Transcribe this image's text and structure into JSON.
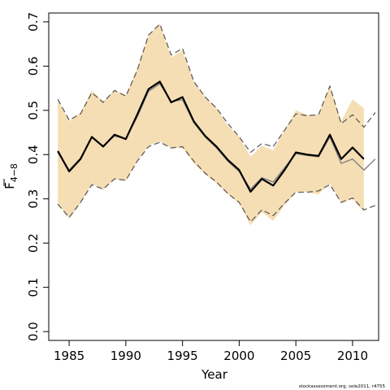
{
  "chart_data": {
    "type": "line",
    "title": "",
    "xlabel": "Year",
    "ylabel_main": "F",
    "ylabel_sub": "4−8",
    "xlim": [
      1983.2,
      2012.3
    ],
    "ylim": [
      -0.02,
      0.72
    ],
    "xticks": [
      1985,
      1990,
      1995,
      2000,
      2005,
      2010
    ],
    "yticks": [
      "0.0",
      "0.1",
      "0.2",
      "0.3",
      "0.4",
      "0.5",
      "0.6",
      "0.7"
    ],
    "colors": {
      "band": "#f5deb3",
      "bold": "#000000",
      "thin": "#808080",
      "dash": "#555555"
    },
    "band": {
      "x": [
        1984,
        1985,
        1986,
        1987,
        1988,
        1989,
        1990,
        1991,
        1992,
        1993,
        1994,
        1995,
        1996,
        1997,
        1998,
        1999,
        2000,
        2001,
        2002,
        2003,
        2004,
        2005,
        2006,
        2007,
        2008,
        2009,
        2010,
        2011
      ],
      "upper": [
        0.525,
        0.475,
        0.495,
        0.545,
        0.52,
        0.545,
        0.535,
        0.595,
        0.67,
        0.695,
        0.62,
        0.635,
        0.565,
        0.53,
        0.505,
        0.465,
        0.44,
        0.395,
        0.42,
        0.41,
        0.455,
        0.5,
        0.49,
        0.49,
        0.555,
        0.475,
        0.525,
        0.505
      ],
      "lower": [
        0.29,
        0.255,
        0.29,
        0.335,
        0.32,
        0.345,
        0.34,
        0.385,
        0.42,
        0.43,
        0.415,
        0.415,
        0.38,
        0.355,
        0.335,
        0.31,
        0.29,
        0.24,
        0.27,
        0.25,
        0.285,
        0.315,
        0.315,
        0.31,
        0.335,
        0.29,
        0.3,
        0.27
      ]
    },
    "series": [
      {
        "style": "bold",
        "x": [
          1984,
          1985,
          1986,
          1987,
          1988,
          1989,
          1990,
          1991,
          1992,
          1993,
          1994,
          1995,
          1996,
          1997,
          1998,
          1999,
          2000,
          2001,
          2002,
          2003,
          2004,
          2005,
          2006,
          2007,
          2008,
          2009,
          2010,
          2011
        ],
        "values": [
          0.408,
          0.362,
          0.39,
          0.44,
          0.418,
          0.445,
          0.435,
          0.49,
          0.548,
          0.565,
          0.518,
          0.53,
          0.475,
          0.442,
          0.418,
          0.388,
          0.365,
          0.316,
          0.345,
          0.33,
          0.365,
          0.405,
          0.4,
          0.397,
          0.445,
          0.39,
          0.416,
          0.39
        ]
      },
      {
        "style": "thin",
        "x": [
          1984,
          1985,
          1986,
          1987,
          1988,
          1989,
          1990,
          1991,
          1992,
          1993,
          1994,
          1995,
          1996,
          1997,
          1998,
          1999,
          2000,
          2001,
          2002,
          2003,
          2004,
          2005,
          2006,
          2007,
          2008,
          2009,
          2010,
          2011,
          2012
        ],
        "values": [
          0.405,
          0.365,
          0.392,
          0.438,
          0.42,
          0.442,
          0.436,
          0.485,
          0.543,
          0.56,
          0.52,
          0.524,
          0.472,
          0.44,
          0.415,
          0.385,
          0.362,
          0.322,
          0.348,
          0.338,
          0.37,
          0.402,
          0.398,
          0.395,
          0.44,
          0.38,
          0.39,
          0.365,
          0.39
        ]
      },
      {
        "style": "dash-upper",
        "x": [
          1984,
          1985,
          1986,
          1987,
          1988,
          1989,
          1990,
          1991,
          1992,
          1993,
          1994,
          1995,
          1996,
          1997,
          1998,
          1999,
          2000,
          2001,
          2002,
          2003,
          2004,
          2005,
          2006,
          2007,
          2008,
          2009,
          2010,
          2011,
          2012
        ],
        "values": [
          0.525,
          0.478,
          0.492,
          0.54,
          0.518,
          0.545,
          0.532,
          0.59,
          0.67,
          0.695,
          0.625,
          0.64,
          0.565,
          0.53,
          0.505,
          0.47,
          0.44,
          0.405,
          0.425,
          0.418,
          0.455,
          0.492,
          0.488,
          0.49,
          0.555,
          0.47,
          0.49,
          0.462,
          0.495
        ]
      },
      {
        "style": "dash-lower",
        "x": [
          1984,
          1985,
          1986,
          1987,
          1988,
          1989,
          1990,
          1991,
          1992,
          1993,
          1994,
          1995,
          1996,
          1997,
          1998,
          1999,
          2000,
          2001,
          2002,
          2003,
          2004,
          2005,
          2006,
          2007,
          2008,
          2009,
          2010,
          2011,
          2012
        ],
        "values": [
          0.288,
          0.258,
          0.292,
          0.332,
          0.322,
          0.345,
          0.342,
          0.385,
          0.418,
          0.428,
          0.415,
          0.418,
          0.385,
          0.358,
          0.338,
          0.312,
          0.292,
          0.248,
          0.275,
          0.262,
          0.29,
          0.315,
          0.315,
          0.318,
          0.332,
          0.292,
          0.302,
          0.275,
          0.285
        ]
      }
    ],
    "grid": false,
    "legend": "none",
    "credit": "stockassessment.org, sole2011, r4755"
  }
}
